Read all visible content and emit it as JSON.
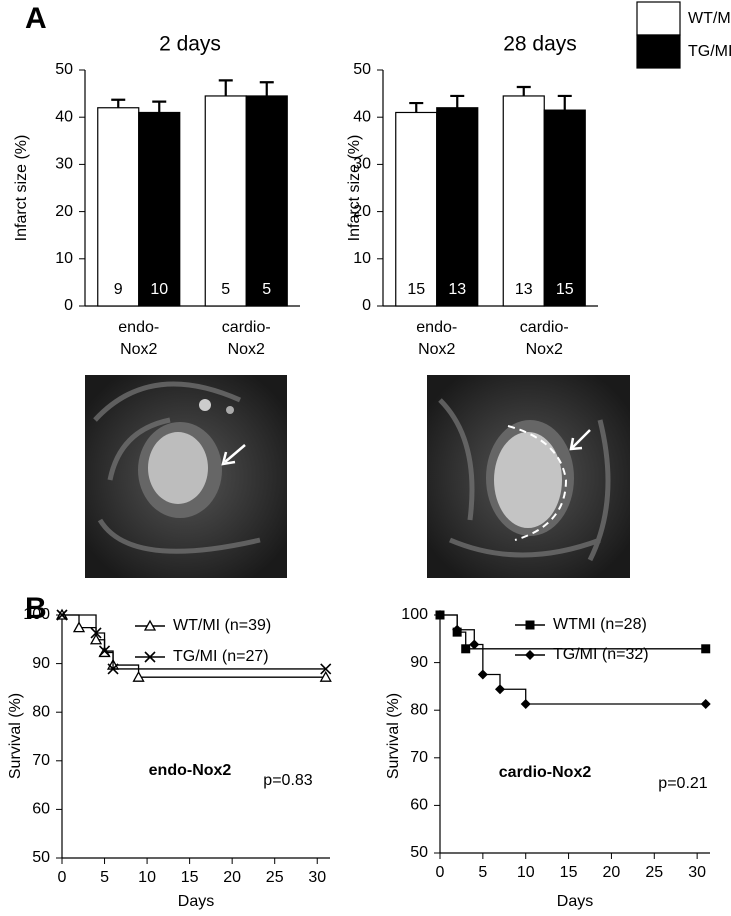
{
  "panel_labels": [
    "A",
    "B"
  ],
  "chart_data": [
    {
      "type": "bar",
      "title": "2 days",
      "ylabel": "Infarct size (%)",
      "categories": [
        [
          "endo-",
          "Nox2"
        ],
        [
          "cardio-",
          "Nox2"
        ]
      ],
      "series": [
        {
          "name": "WT/MI",
          "color": "#ffffff",
          "values": [
            42,
            44.5
          ],
          "errors": [
            1.7,
            3.3
          ],
          "n_labels": [
            "9",
            "5"
          ]
        },
        {
          "name": "TG/MI",
          "color": "#000000",
          "values": [
            41,
            44.5
          ],
          "errors": [
            2.3,
            2.9
          ],
          "n_labels": [
            "10",
            "5"
          ]
        }
      ],
      "ylim": [
        0,
        50
      ],
      "yticks": [
        0,
        10,
        20,
        30,
        40,
        50
      ]
    },
    {
      "type": "bar",
      "title": "28 days",
      "ylabel": "Infarct size (%)",
      "categories": [
        [
          "endo-",
          "Nox2"
        ],
        [
          "cardio-",
          "Nox2"
        ]
      ],
      "series": [
        {
          "color": "#ffffff",
          "values": [
            41,
            44.5
          ],
          "errors": [
            2,
            1.9
          ],
          "n_labels": [
            "15",
            "13"
          ]
        },
        {
          "color": "#000000",
          "values": [
            42,
            41.5
          ],
          "errors": [
            2.5,
            3
          ],
          "n_labels": [
            "13",
            "15"
          ]
        }
      ],
      "ylim": [
        0,
        50
      ],
      "yticks": [
        0,
        10,
        20,
        30,
        40,
        50
      ]
    },
    {
      "type": "step",
      "ylabel": "Survival (%)",
      "xlabel": "Days",
      "annotations": [
        "p=0.83",
        "endo-Nox2"
      ],
      "series": [
        {
          "name": "WT/MI (n=39)",
          "marker": "triangle",
          "x": [
            0,
            2,
            4,
            5,
            6,
            9,
            31
          ],
          "values": [
            100,
            97.4,
            94.9,
            92.3,
            89.7,
            87.2,
            87.2
          ]
        },
        {
          "name": "TG/MI (n=27)",
          "marker": "x",
          "x": [
            0,
            4,
            5,
            6,
            31
          ],
          "values": [
            100,
            96.3,
            92.6,
            88.9,
            88.9
          ]
        }
      ],
      "xlim": [
        0,
        31.5
      ],
      "xticks": [
        0,
        5,
        10,
        15,
        20,
        25,
        30
      ],
      "ylim": [
        50,
        100
      ],
      "yticks": [
        50,
        60,
        70,
        80,
        90,
        100
      ]
    },
    {
      "type": "step",
      "ylabel": "Survival (%)",
      "xlabel": "Days",
      "annotations": [
        "p=0.21",
        "cardio-Nox2"
      ],
      "series": [
        {
          "name": "WTMI (n=28)",
          "marker": "square",
          "x": [
            0,
            2,
            3,
            31
          ],
          "values": [
            100,
            96.4,
            92.9,
            92.9
          ]
        },
        {
          "name": "TG/MI (n=32)",
          "marker": "diamond",
          "x": [
            0,
            2,
            4,
            5,
            7,
            10,
            31
          ],
          "values": [
            100,
            96.9,
            93.8,
            87.5,
            84.4,
            81.3,
            81.3
          ]
        }
      ],
      "xlim": [
        0,
        31.5
      ],
      "xticks": [
        0,
        5,
        10,
        15,
        20,
        25,
        30
      ],
      "ylim": [
        50,
        100
      ],
      "yticks": [
        50,
        60,
        70,
        80,
        90,
        100
      ]
    }
  ]
}
